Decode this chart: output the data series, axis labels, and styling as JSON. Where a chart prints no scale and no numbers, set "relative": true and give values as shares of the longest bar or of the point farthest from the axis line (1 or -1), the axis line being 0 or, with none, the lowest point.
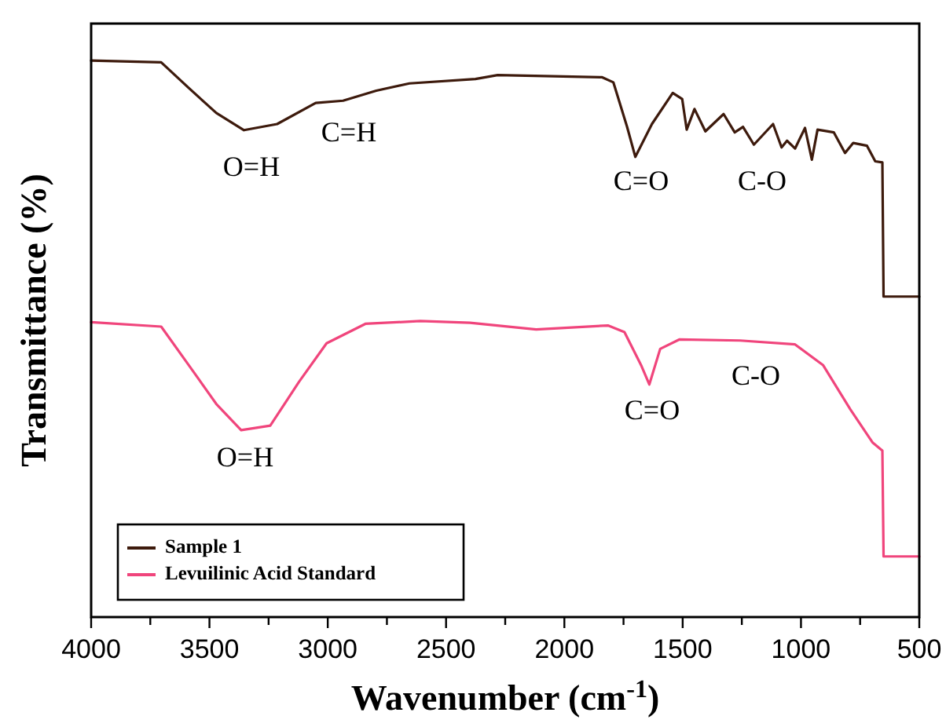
{
  "chart_data": {
    "type": "line",
    "relative": true,
    "xlabel": "Wavenumber (cm$^{-1}$)",
    "ylabel": "Transmittance (%)",
    "xlim": [
      4000,
      500
    ],
    "xticks": [
      4000,
      {
        "value": 3750,
        "label": null
      },
      3500,
      {
        "value": 3250,
        "label": null
      },
      3000,
      {
        "value": 2750,
        "label": null
      },
      2500,
      {
        "value": 2250,
        "label": null
      },
      2000,
      {
        "value": 1750,
        "label": null
      },
      1500,
      {
        "value": 1250,
        "label": null
      },
      1000,
      {
        "value": 750,
        "label": null
      },
      500
    ],
    "tick_labels": "x",
    "grid": false,
    "legend": "bottom left",
    "marker": "none",
    "line_style": "solid",
    "series": [
      {
        "name": "Sample 1",
        "color": "#3d1a0c",
        "x": [
          4000,
          3704,
          3588,
          3471,
          3354,
          3214,
          3051,
          2935,
          2795,
          2655,
          2376,
          2282,
          1840,
          1793,
          1735,
          1700,
          1630,
          1542,
          1502,
          1483,
          1450,
          1404,
          1327,
          1280,
          1245,
          1199,
          1118,
          1082,
          1059,
          1025,
          983,
          954,
          930,
          861,
          814,
          779,
          721,
          686,
          656,
          651,
          500
        ],
        "values": [
          1.0,
          0.997,
          0.951,
          0.906,
          0.875,
          0.886,
          0.924,
          0.928,
          0.946,
          0.959,
          0.967,
          0.974,
          0.97,
          0.961,
          0.881,
          0.827,
          0.886,
          0.942,
          0.931,
          0.876,
          0.913,
          0.873,
          0.904,
          0.871,
          0.881,
          0.849,
          0.886,
          0.844,
          0.856,
          0.842,
          0.879,
          0.822,
          0.876,
          0.871,
          0.834,
          0.852,
          0.847,
          0.819,
          0.817,
          0.576,
          0.576
        ]
      },
      {
        "name": "Levuilinic Acid Standard",
        "color": "#f0457c",
        "x": [
          4000,
          3704,
          3588,
          3471,
          3366,
          3243,
          3121,
          3005,
          2841,
          2609,
          2399,
          2119,
          1816,
          1746,
          1676,
          1641,
          1595,
          1513,
          1257,
          1025,
          907,
          791,
          698,
          656,
          651,
          500
        ],
        "values": [
          0.53,
          0.522,
          0.453,
          0.383,
          0.336,
          0.344,
          0.423,
          0.492,
          0.527,
          0.532,
          0.529,
          0.517,
          0.524,
          0.512,
          0.453,
          0.418,
          0.482,
          0.499,
          0.497,
          0.49,
          0.453,
          0.373,
          0.314,
          0.299,
          0.109,
          0.109
        ]
      }
    ],
    "annotations": [
      "O=H",
      "C=H",
      "C=O",
      "C-O",
      "O=H",
      "C=O",
      "C-O"
    ]
  }
}
